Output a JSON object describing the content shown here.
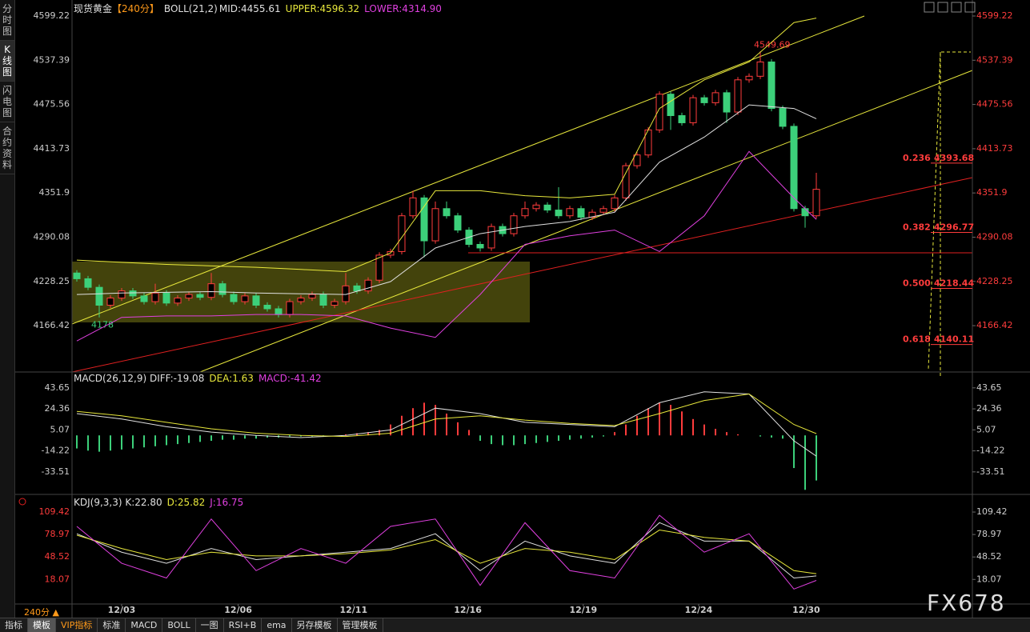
{
  "sidebar": [
    "分时图",
    "K线图",
    "闪电图",
    "合约资料"
  ],
  "main": {
    "title": "现货黄金",
    "period": "【240分】",
    "indicator": "BOLL(21,2)",
    "header": [
      "MID:4455.61",
      "UPPER:4596.32",
      "LOWER:4314.90"
    ],
    "ylim": [
      4105,
      4616
    ],
    "yticks": [
      4599.22,
      4537.39,
      4475.56,
      4413.73,
      4351.9,
      4290.08,
      4228.25,
      4166.42
    ],
    "candles": [
      [
        4240,
        4244,
        4228,
        4232
      ],
      [
        4232,
        4236,
        4216,
        4220
      ],
      [
        4220,
        4224,
        4178,
        4195
      ],
      [
        4195,
        4209,
        4191,
        4205
      ],
      [
        4205,
        4219,
        4201,
        4215
      ],
      [
        4215,
        4219,
        4204,
        4208
      ],
      [
        4208,
        4212,
        4196,
        4200
      ],
      [
        4200,
        4225,
        4196,
        4212
      ],
      [
        4212,
        4216,
        4194,
        4198
      ],
      [
        4198,
        4209,
        4194,
        4205
      ],
      [
        4205,
        4214,
        4201,
        4210
      ],
      [
        4210,
        4214,
        4202,
        4206
      ],
      [
        4206,
        4240,
        4202,
        4225
      ],
      [
        4225,
        4229,
        4206,
        4210
      ],
      [
        4210,
        4214,
        4196,
        4200
      ],
      [
        4200,
        4212,
        4196,
        4208
      ],
      [
        4208,
        4212,
        4191,
        4195
      ],
      [
        4195,
        4199,
        4186,
        4190
      ],
      [
        4190,
        4194,
        4178,
        4182
      ],
      [
        4182,
        4204,
        4178,
        4200
      ],
      [
        4200,
        4209,
        4196,
        4205
      ],
      [
        4205,
        4214,
        4201,
        4210
      ],
      [
        4210,
        4214,
        4191,
        4195
      ],
      [
        4195,
        4204,
        4191,
        4200
      ],
      [
        4200,
        4240,
        4196,
        4222
      ],
      [
        4222,
        4226,
        4211,
        4215
      ],
      [
        4215,
        4234,
        4211,
        4230
      ],
      [
        4230,
        4269,
        4226,
        4265
      ],
      [
        4265,
        4274,
        4261,
        4270
      ],
      [
        4270,
        4324,
        4266,
        4320
      ],
      [
        4320,
        4355,
        4316,
        4345
      ],
      [
        4345,
        4349,
        4262,
        4285
      ],
      [
        4285,
        4340,
        4281,
        4330
      ],
      [
        4330,
        4340,
        4316,
        4320
      ],
      [
        4320,
        4324,
        4296,
        4300
      ],
      [
        4300,
        4304,
        4276,
        4280
      ],
      [
        4280,
        4284,
        4270,
        4275
      ],
      [
        4275,
        4309,
        4271,
        4305
      ],
      [
        4305,
        4309,
        4291,
        4295
      ],
      [
        4295,
        4324,
        4291,
        4320
      ],
      [
        4320,
        4340,
        4316,
        4330
      ],
      [
        4330,
        4339,
        4326,
        4335
      ],
      [
        4335,
        4339,
        4324,
        4328
      ],
      [
        4328,
        4360,
        4316,
        4320
      ],
      [
        4320,
        4334,
        4316,
        4330
      ],
      [
        4330,
        4334,
        4314,
        4318
      ],
      [
        4318,
        4329,
        4314,
        4325
      ],
      [
        4325,
        4334,
        4321,
        4330
      ],
      [
        4330,
        4349,
        4326,
        4345
      ],
      [
        4345,
        4394,
        4341,
        4390
      ],
      [
        4390,
        4409,
        4386,
        4405
      ],
      [
        4405,
        4444,
        4401,
        4440
      ],
      [
        4440,
        4494,
        4436,
        4490
      ],
      [
        4490,
        4494,
        4440,
        4460
      ],
      [
        4460,
        4464,
        4446,
        4450
      ],
      [
        4450,
        4489,
        4446,
        4485
      ],
      [
        4485,
        4489,
        4474,
        4478
      ],
      [
        4478,
        4496,
        4474,
        4492
      ],
      [
        4492,
        4496,
        4450,
        4465
      ],
      [
        4465,
        4514,
        4461,
        4510
      ],
      [
        4510,
        4519,
        4506,
        4515
      ],
      [
        4515,
        4549.69,
        4511,
        4535
      ],
      [
        4535,
        4539,
        4466,
        4470
      ],
      [
        4470,
        4474,
        4441,
        4445
      ],
      [
        4445,
        4449,
        4326,
        4330
      ],
      [
        4330,
        4334,
        4303.36,
        4320
      ],
      [
        4320,
        4380,
        4316,
        4357
      ]
    ],
    "idx": [
      0,
      4,
      8,
      12,
      16,
      20,
      24,
      28,
      32,
      36,
      40,
      44,
      48,
      52,
      56,
      60,
      64,
      66
    ],
    "series": [
      {
        "name": "UPPER",
        "color": "#e8e83c",
        "values": [
          4258,
          4255,
          4252,
          4250,
          4248,
          4245,
          4242,
          4268,
          4355,
          4355,
          4348,
          4345,
          4350,
          4470,
          4510,
          4535,
          4590,
          4596.32
        ]
      },
      {
        "name": "MID",
        "color": "#e0e0e0",
        "values": [
          4210,
          4212,
          4213,
          4214,
          4212,
          4211,
          4210,
          4228,
          4275,
          4295,
          4305,
          4312,
          4325,
          4395,
          4430,
          4475,
          4470,
          4455.61
        ]
      },
      {
        "name": "LOWER",
        "color": "#e040e0",
        "values": [
          4145,
          4178,
          4180,
          4180,
          4182,
          4182,
          4180,
          4163,
          4150,
          4210,
          4280,
          4292,
          4300,
          4270,
          4320,
          4410,
          4345,
          4314.9
        ]
      }
    ],
    "fib": [
      {
        "ratio": 0.236,
        "price": 4393.68
      },
      {
        "ratio": 0.382,
        "price": 4296.77
      },
      {
        "ratio": {
          "value": 0.5,
          "label": "0.500"
        },
        "price": 4218.44
      },
      {
        "ratio": 0.618,
        "price": 4140.11
      }
    ]
  },
  "macd": {
    "header": [
      "MACD(26,12,9) DIFF:-19.08",
      "DEA:1.63",
      "MACD:-41.42"
    ],
    "ylim": [
      -52,
      56
    ],
    "yticks": [
      43.65,
      24.36,
      5.07,
      -14.22,
      -33.51
    ],
    "hist": [
      -12,
      -14,
      -15,
      -14,
      -13,
      -12,
      -11,
      -10,
      -9,
      -8,
      -7,
      -6,
      -5,
      -4,
      -4,
      -3,
      -3,
      -2,
      -2,
      -1,
      -1,
      -1,
      -1,
      0,
      1,
      2,
      3,
      5,
      10,
      18,
      25,
      30,
      28,
      20,
      12,
      5,
      -5,
      -8,
      -9,
      -9,
      -8,
      -7,
      -6,
      -5,
      -4,
      -3,
      -2,
      -1,
      3,
      10,
      18,
      25,
      30,
      28,
      22,
      15,
      10,
      6,
      3,
      1,
      0,
      -1,
      -2,
      -3,
      -30,
      -50,
      -41.42
    ],
    "series": [
      {
        "name": "DIFF",
        "color": "#e0e0e0",
        "values": [
          20,
          15,
          8,
          3,
          0,
          -2,
          0,
          5,
          25,
          20,
          12,
          10,
          8,
          30,
          40,
          38,
          -5,
          -19.08
        ]
      },
      {
        "name": "DEA",
        "color": "#e8e83c",
        "values": [
          22,
          18,
          12,
          6,
          2,
          0,
          -1,
          2,
          15,
          18,
          14,
          11,
          9,
          20,
          32,
          38,
          10,
          1.63
        ]
      }
    ]
  },
  "kdj": {
    "header": [
      "KDJ(9,3,3) K:22.80",
      "D:25.82",
      "J:16.75"
    ],
    "ylim": [
      -12,
      129
    ],
    "yticks": [
      109.42,
      78.97,
      48.52,
      18.07
    ],
    "series": [
      {
        "name": "K",
        "color": "#e0e0e0",
        "values": [
          80,
          55,
          40,
          60,
          45,
          50,
          55,
          60,
          80,
          30,
          70,
          50,
          40,
          95,
          70,
          70,
          20,
          22.8
        ]
      },
      {
        "name": "D",
        "color": "#e8e83c",
        "values": [
          78,
          60,
          45,
          55,
          50,
          50,
          53,
          58,
          72,
          40,
          60,
          55,
          45,
          85,
          75,
          70,
          30,
          25.82
        ]
      },
      {
        "name": "J",
        "color": "#e040e0",
        "values": [
          90,
          40,
          20,
          100,
          30,
          60,
          40,
          90,
          100,
          10,
          95,
          30,
          20,
          105,
          55,
          80,
          5,
          16.75
        ]
      }
    ]
  },
  "dates": [
    {
      "label": "12/03",
      "index": 4
    },
    {
      "label": "12/06",
      "index": 14.4
    },
    {
      "label": "12/11",
      "index": 24.7
    },
    {
      "label": "12/16",
      "index": 34.9
    },
    {
      "label": "12/19",
      "index": 45.2
    },
    {
      "label": "12/24",
      "index": 55.5
    },
    {
      "label": "12/30",
      "index": 65.1
    }
  ],
  "period_label": "240分 ▲",
  "tabs": [
    "指标",
    "模板",
    "VIP指标",
    "标准",
    "MACD",
    "BOLL",
    "一图",
    "RSI+B",
    "ema",
    "另存模板",
    "管理模板"
  ],
  "watermark": "FX678"
}
